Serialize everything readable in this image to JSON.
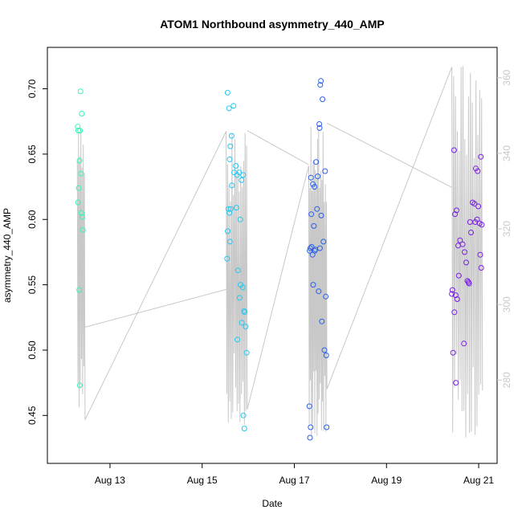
{
  "chart_data": {
    "type": "scatter",
    "title": "ATOM1 Northbound asymmetry_440_AMP",
    "xlabel": "Date",
    "ylabel": "asymmetry_440_AMP",
    "xlim": [
      "2016-08-11 20:00",
      "2016-08-21 05:00"
    ],
    "ylim": [
      0.425,
      0.72
    ],
    "y2lim": [
      262,
      364
    ],
    "x_ticks": [
      {
        "value": "2016-08-13",
        "label": "Aug 13"
      },
      {
        "value": "2016-08-15",
        "label": "Aug 15"
      },
      {
        "value": "2016-08-17",
        "label": "Aug 17"
      },
      {
        "value": "2016-08-19",
        "label": "Aug 19"
      },
      {
        "value": "2016-08-21",
        "label": "Aug 21"
      }
    ],
    "y_ticks": [
      "0.45",
      "0.50",
      "0.55",
      "0.60",
      "0.65",
      "0.70"
    ],
    "y2_ticks": [
      "280",
      "300",
      "320",
      "340",
      "360"
    ],
    "grid": false,
    "colors": {
      "secondary": "#c8c8c8",
      "axis": "#000000"
    },
    "series": [
      {
        "color": "#34f5b5",
        "points": [
          [
            "2016-08-12 07:10",
            0.671
          ],
          [
            "2016-08-12 07:30",
            0.668
          ],
          [
            "2016-08-12 07:45",
            0.624
          ],
          [
            "2016-08-12 07:20",
            0.613
          ],
          [
            "2016-08-12 08:10",
            0.645
          ],
          [
            "2016-08-12 08:25",
            0.668
          ],
          [
            "2016-08-12 08:40",
            0.698
          ],
          [
            "2016-08-12 08:55",
            0.635
          ],
          [
            "2016-08-12 09:20",
            0.681
          ],
          [
            "2016-08-12 09:05",
            0.605
          ],
          [
            "2016-08-12 09:35",
            0.602
          ],
          [
            "2016-08-12 09:50",
            0.592
          ],
          [
            "2016-08-12 08:00",
            0.546
          ],
          [
            "2016-08-12 08:15",
            0.473
          ]
        ]
      },
      {
        "color": "#22c8f2",
        "points": [
          [
            "2016-08-15 13:15",
            0.697
          ],
          [
            "2016-08-15 14:00",
            0.685
          ],
          [
            "2016-08-15 16:20",
            0.687
          ],
          [
            "2016-08-15 15:20",
            0.664
          ],
          [
            "2016-08-15 14:40",
            0.656
          ],
          [
            "2016-08-15 14:20",
            0.646
          ],
          [
            "2016-08-15 17:30",
            0.641
          ],
          [
            "2016-08-15 16:40",
            0.636
          ],
          [
            "2016-08-15 18:10",
            0.634
          ],
          [
            "2016-08-15 19:20",
            0.636
          ],
          [
            "2016-08-15 20:30",
            0.63
          ],
          [
            "2016-08-15 21:20",
            0.634
          ],
          [
            "2016-08-15 15:30",
            0.626
          ],
          [
            "2016-08-15 13:40",
            0.608
          ],
          [
            "2016-08-15 14:10",
            0.605
          ],
          [
            "2016-08-15 17:50",
            0.609
          ],
          [
            "2016-08-15 19:50",
            0.6
          ],
          [
            "2016-08-15 13:20",
            0.591
          ],
          [
            "2016-08-15 14:30",
            0.583
          ],
          [
            "2016-08-15 13:00",
            0.57
          ],
          [
            "2016-08-15 18:40",
            0.561
          ],
          [
            "2016-08-15 20:00",
            0.55
          ],
          [
            "2016-08-15 21:10",
            0.548
          ],
          [
            "2016-08-15 19:30",
            0.54
          ],
          [
            "2016-08-15 21:50",
            0.53
          ],
          [
            "2016-08-15 22:10",
            0.529
          ],
          [
            "2016-08-15 20:40",
            0.521
          ],
          [
            "2016-08-15 22:40",
            0.518
          ],
          [
            "2016-08-15 18:20",
            0.508
          ],
          [
            "2016-08-15 23:10",
            0.498
          ],
          [
            "2016-08-15 21:30",
            0.45
          ],
          [
            "2016-08-15 22:00",
            0.44
          ],
          [
            "2016-08-15 14:50",
            0.608
          ]
        ]
      },
      {
        "color": "#2a5fea",
        "points": [
          [
            "2016-08-17 13:50",
            0.706
          ],
          [
            "2016-08-17 13:30",
            0.703
          ],
          [
            "2016-08-17 14:40",
            0.692
          ],
          [
            "2016-08-17 13:00",
            0.673
          ],
          [
            "2016-08-17 13:10",
            0.67
          ],
          [
            "2016-08-17 11:20",
            0.644
          ],
          [
            "2016-08-17 16:00",
            0.637
          ],
          [
            "2016-08-17 08:40",
            0.632
          ],
          [
            "2016-08-17 12:10",
            0.633
          ],
          [
            "2016-08-17 09:40",
            0.627
          ],
          [
            "2016-08-17 10:30",
            0.625
          ],
          [
            "2016-08-17 11:50",
            0.608
          ],
          [
            "2016-08-17 08:50",
            0.604
          ],
          [
            "2016-08-17 14:00",
            0.603
          ],
          [
            "2016-08-17 10:10",
            0.595
          ],
          [
            "2016-08-17 15:10",
            0.583
          ],
          [
            "2016-08-17 08:20",
            0.578
          ],
          [
            "2016-08-17 09:00",
            0.579
          ],
          [
            "2016-08-17 08:00",
            0.576
          ],
          [
            "2016-08-17 11:00",
            0.577
          ],
          [
            "2016-08-17 13:20",
            0.578
          ],
          [
            "2016-08-17 10:40",
            0.576
          ],
          [
            "2016-08-17 09:30",
            0.573
          ],
          [
            "2016-08-17 09:50",
            0.55
          ],
          [
            "2016-08-17 12:40",
            0.545
          ],
          [
            "2016-08-17 16:20",
            0.541
          ],
          [
            "2016-08-17 14:20",
            0.522
          ],
          [
            "2016-08-17 15:40",
            0.5
          ],
          [
            "2016-08-17 16:40",
            0.496
          ],
          [
            "2016-08-17 07:50",
            0.457
          ],
          [
            "2016-08-17 08:30",
            0.441
          ],
          [
            "2016-08-17 16:50",
            0.441
          ],
          [
            "2016-08-17 08:10",
            0.433
          ]
        ]
      },
      {
        "color": "#7a1ee6",
        "points": [
          [
            "2016-08-20 11:10",
            0.653
          ],
          [
            "2016-08-20 22:30",
            0.639
          ],
          [
            "2016-08-20 23:30",
            0.637
          ],
          [
            "2016-08-21 01:10",
            0.648
          ],
          [
            "2016-08-20 20:50",
            0.613
          ],
          [
            "2016-08-20 21:50",
            0.612
          ],
          [
            "2016-08-20 23:50",
            0.61
          ],
          [
            "2016-08-20 12:30",
            0.607
          ],
          [
            "2016-08-20 11:40",
            0.604
          ],
          [
            "2016-08-20 22:10",
            0.598
          ],
          [
            "2016-08-20 23:10",
            0.6
          ],
          [
            "2016-08-21 00:30",
            0.597
          ],
          [
            "2016-08-21 01:40",
            0.596
          ],
          [
            "2016-08-20 19:30",
            0.598
          ],
          [
            "2016-08-20 20:00",
            0.59
          ],
          [
            "2016-08-20 13:20",
            0.58
          ],
          [
            "2016-08-20 14:20",
            0.584
          ],
          [
            "2016-08-20 15:40",
            0.581
          ],
          [
            "2016-08-20 16:40",
            0.575
          ],
          [
            "2016-08-21 00:50",
            0.573
          ],
          [
            "2016-08-20 17:30",
            0.567
          ],
          [
            "2016-08-21 01:20",
            0.563
          ],
          [
            "2016-08-20 13:40",
            0.557
          ],
          [
            "2016-08-20 18:10",
            0.553
          ],
          [
            "2016-08-20 19:00",
            0.551
          ],
          [
            "2016-08-20 18:40",
            0.552
          ],
          [
            "2016-08-20 10:20",
            0.546
          ],
          [
            "2016-08-20 10:00",
            0.543
          ],
          [
            "2016-08-20 12:00",
            0.542
          ],
          [
            "2016-08-20 12:50",
            0.539
          ],
          [
            "2016-08-20 11:20",
            0.529
          ],
          [
            "2016-08-20 16:20",
            0.505
          ],
          [
            "2016-08-20 10:40",
            0.498
          ],
          [
            "2016-08-20 12:10",
            0.475
          ]
        ]
      }
    ],
    "secondary_series": {
      "type": "line",
      "color": "#c8c8c8",
      "axis": "right",
      "segments": [
        {
          "x0": "2016-08-12 07:00",
          "x1": "2016-08-12 11:00",
          "n": 14,
          "min": 268,
          "max": 348
        },
        {
          "x0": "2016-08-15 12:30",
          "x1": "2016-08-15 23:30",
          "n": 30,
          "min": 268,
          "max": 346
        },
        {
          "x0": "2016-08-17 07:30",
          "x1": "2016-08-17 17:00",
          "n": 34,
          "min": 262,
          "max": 348
        },
        {
          "x0": "2016-08-20 10:00",
          "x1": "2016-08-21 02:00",
          "n": 34,
          "min": 262,
          "max": 364
        }
      ],
      "connectors": [
        [
          [
            "2016-08-12 11:00",
            294
          ],
          [
            "2016-08-15 12:30",
            304
          ]
        ],
        [
          [
            "2016-08-15 23:30",
            346
          ],
          [
            "2016-08-17 07:30",
            337
          ]
        ],
        [
          [
            "2016-08-17 17:00",
            348
          ],
          [
            "2016-08-20 10:00",
            331
          ]
        ]
      ]
    }
  }
}
